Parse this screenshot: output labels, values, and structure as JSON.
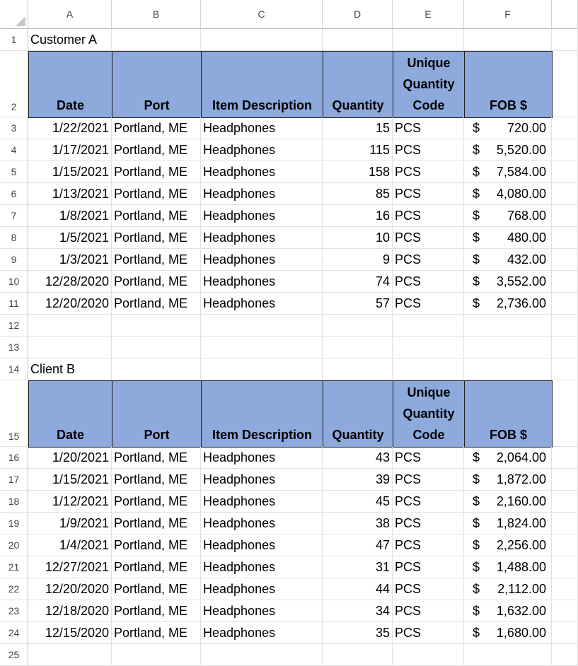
{
  "columns": [
    "A",
    "B",
    "C",
    "D",
    "E",
    "F"
  ],
  "section_a": {
    "title": "Customer A",
    "headers": {
      "date": "Date",
      "port": "Port",
      "item": "Item Description",
      "qty": "Quantity",
      "code_line1": "Unique",
      "code_line2": "Quantity",
      "code_line3": "Code",
      "fob": "FOB $"
    },
    "rows": [
      {
        "row": "3",
        "date": "1/22/2021",
        "port": "Portland, ME",
        "item": "Headphones",
        "qty": "15",
        "code": "PCS",
        "cur": "$",
        "fob": "720.00"
      },
      {
        "row": "4",
        "date": "1/17/2021",
        "port": "Portland, ME",
        "item": "Headphones",
        "qty": "115",
        "code": "PCS",
        "cur": "$",
        "fob": "5,520.00"
      },
      {
        "row": "5",
        "date": "1/15/2021",
        "port": "Portland, ME",
        "item": "Headphones",
        "qty": "158",
        "code": "PCS",
        "cur": "$",
        "fob": "7,584.00"
      },
      {
        "row": "6",
        "date": "1/13/2021",
        "port": "Portland, ME",
        "item": "Headphones",
        "qty": "85",
        "code": "PCS",
        "cur": "$",
        "fob": "4,080.00"
      },
      {
        "row": "7",
        "date": "1/8/2021",
        "port": "Portland, ME",
        "item": "Headphones",
        "qty": "16",
        "code": "PCS",
        "cur": "$",
        "fob": "768.00"
      },
      {
        "row": "8",
        "date": "1/5/2021",
        "port": "Portland, ME",
        "item": "Headphones",
        "qty": "10",
        "code": "PCS",
        "cur": "$",
        "fob": "480.00"
      },
      {
        "row": "9",
        "date": "1/3/2021",
        "port": "Portland, ME",
        "item": "Headphones",
        "qty": "9",
        "code": "PCS",
        "cur": "$",
        "fob": "432.00"
      },
      {
        "row": "10",
        "date": "12/28/2020",
        "port": "Portland, ME",
        "item": "Headphones",
        "qty": "74",
        "code": "PCS",
        "cur": "$",
        "fob": "3,552.00"
      },
      {
        "row": "11",
        "date": "12/20/2020",
        "port": "Portland, ME",
        "item": "Headphones",
        "qty": "57",
        "code": "PCS",
        "cur": "$",
        "fob": "2,736.00"
      }
    ]
  },
  "section_b": {
    "title": "Client B",
    "headers": {
      "date": "Date",
      "port": "Port",
      "item": "Item Description",
      "qty": "Quantity",
      "code_line1": "Unique",
      "code_line2": "Quantity",
      "code_line3": "Code",
      "fob": "FOB $"
    },
    "rows": [
      {
        "row": "16",
        "date": "1/20/2021",
        "port": "Portland, ME",
        "item": "Headphones",
        "qty": "43",
        "code": "PCS",
        "cur": "$",
        "fob": "2,064.00"
      },
      {
        "row": "17",
        "date": "1/15/2021",
        "port": "Portland, ME",
        "item": "Headphones",
        "qty": "39",
        "code": "PCS",
        "cur": "$",
        "fob": "1,872.00"
      },
      {
        "row": "18",
        "date": "1/12/2021",
        "port": "Portland, ME",
        "item": "Headphones",
        "qty": "45",
        "code": "PCS",
        "cur": "$",
        "fob": "2,160.00"
      },
      {
        "row": "19",
        "date": "1/9/2021",
        "port": "Portland, ME",
        "item": "Headphones",
        "qty": "38",
        "code": "PCS",
        "cur": "$",
        "fob": "1,824.00"
      },
      {
        "row": "20",
        "date": "1/4/2021",
        "port": "Portland, ME",
        "item": "Headphones",
        "qty": "47",
        "code": "PCS",
        "cur": "$",
        "fob": "2,256.00"
      },
      {
        "row": "21",
        "date": "12/27/2021",
        "port": "Portland, ME",
        "item": "Headphones",
        "qty": "31",
        "code": "PCS",
        "cur": "$",
        "fob": "1,488.00"
      },
      {
        "row": "22",
        "date": "12/20/2020",
        "port": "Portland, ME",
        "item": "Headphones",
        "qty": "44",
        "code": "PCS",
        "cur": "$",
        "fob": "2,112.00"
      },
      {
        "row": "23",
        "date": "12/18/2020",
        "port": "Portland, ME",
        "item": "Headphones",
        "qty": "34",
        "code": "PCS",
        "cur": "$",
        "fob": "1,632.00"
      },
      {
        "row": "24",
        "date": "12/15/2020",
        "port": "Portland, ME",
        "item": "Headphones",
        "qty": "35",
        "code": "PCS",
        "cur": "$",
        "fob": "1,680.00"
      }
    ]
  },
  "row_numbers": {
    "r1": "1",
    "r2": "2",
    "r12": "12",
    "r13": "13",
    "r14": "14",
    "r15": "15",
    "r25": "25"
  },
  "colors": {
    "header_fill": "#8ea9db",
    "header_border": "#1f1f1f",
    "gridline": "#e1e1e1"
  }
}
